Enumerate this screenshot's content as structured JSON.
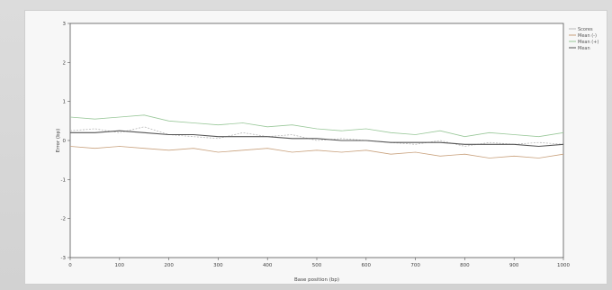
{
  "chart_data": {
    "type": "line",
    "title": "",
    "xlabel": "Base position (bp)",
    "ylabel": "Error (bp)",
    "xlim": [
      0,
      1000
    ],
    "ylim": [
      -3,
      3
    ],
    "xticks": [
      "0",
      "100",
      "200",
      "300",
      "400",
      "500",
      "600",
      "700",
      "800",
      "900",
      "1000"
    ],
    "yticks": [
      "-3",
      "-2",
      "-1",
      "0",
      "1",
      "2",
      "3"
    ],
    "grid": false,
    "legend_position": "top-right",
    "colors": {
      "mean": "#555555",
      "mean_ci_lower": "#c9a27e",
      "mean_ci_upper": "#9ac89a",
      "scores": "#b8b8b8"
    },
    "series": [
      {
        "name": "Scores",
        "x": [
          0,
          50,
          100,
          150,
          200,
          250,
          300,
          350,
          400,
          450,
          500,
          550,
          600,
          650,
          700,
          750,
          800,
          850,
          900,
          950,
          1000
        ],
        "values": [
          0.25,
          0.3,
          0.2,
          0.35,
          0.15,
          0.1,
          0.05,
          0.2,
          0.1,
          0.15,
          0.0,
          0.05,
          0.0,
          -0.05,
          -0.1,
          0.0,
          -0.15,
          -0.05,
          -0.1,
          -0.05,
          -0.1
        ]
      },
      {
        "name": "Mean (-)",
        "x": [
          0,
          50,
          100,
          150,
          200,
          250,
          300,
          350,
          400,
          450,
          500,
          550,
          600,
          650,
          700,
          750,
          800,
          850,
          900,
          950,
          1000
        ],
        "values": [
          -0.15,
          -0.2,
          -0.15,
          -0.2,
          -0.25,
          -0.2,
          -0.3,
          -0.25,
          -0.2,
          -0.3,
          -0.25,
          -0.3,
          -0.25,
          -0.35,
          -0.3,
          -0.4,
          -0.35,
          -0.45,
          -0.4,
          -0.45,
          -0.35
        ]
      },
      {
        "name": "Mean (+)",
        "x": [
          0,
          50,
          100,
          150,
          200,
          250,
          300,
          350,
          400,
          450,
          500,
          550,
          600,
          650,
          700,
          750,
          800,
          850,
          900,
          950,
          1000
        ],
        "values": [
          0.6,
          0.55,
          0.6,
          0.65,
          0.5,
          0.45,
          0.4,
          0.45,
          0.35,
          0.4,
          0.3,
          0.25,
          0.3,
          0.2,
          0.15,
          0.25,
          0.1,
          0.2,
          0.15,
          0.1,
          0.2
        ]
      },
      {
        "name": "Mean",
        "x": [
          0,
          50,
          100,
          150,
          200,
          250,
          300,
          350,
          400,
          450,
          500,
          550,
          600,
          650,
          700,
          750,
          800,
          850,
          900,
          950,
          1000
        ],
        "values": [
          0.2,
          0.2,
          0.25,
          0.2,
          0.15,
          0.15,
          0.1,
          0.1,
          0.1,
          0.05,
          0.05,
          0.0,
          0.0,
          -0.05,
          -0.05,
          -0.05,
          -0.1,
          -0.1,
          -0.1,
          -0.15,
          -0.1
        ]
      }
    ]
  }
}
